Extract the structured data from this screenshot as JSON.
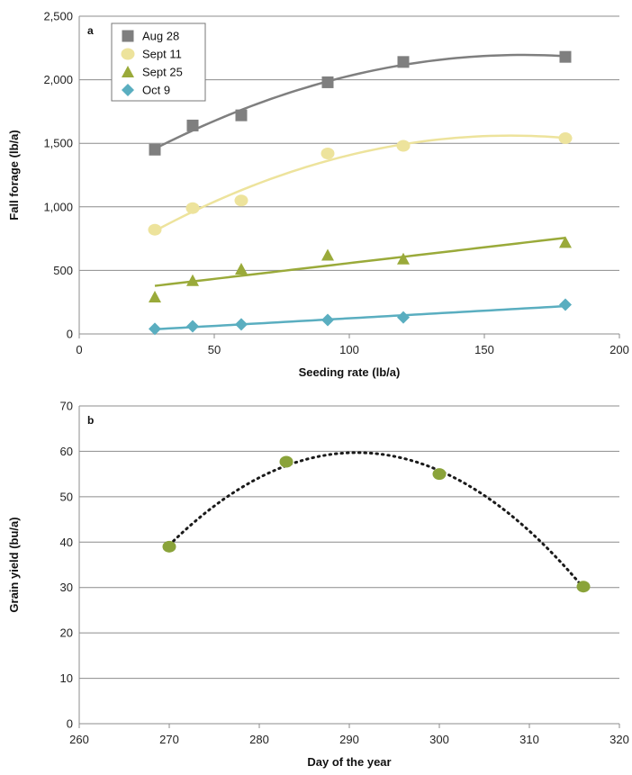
{
  "chart_data": [
    {
      "type": "scatter",
      "panel_label": "a",
      "xlabel": "Seeding rate (lb/a)",
      "ylabel": "Fall forage (lb/a)",
      "xlim": [
        0,
        200
      ],
      "ylim": [
        0,
        2500
      ],
      "xticks": [
        0,
        50,
        100,
        150,
        200
      ],
      "yticks": [
        0,
        500,
        1000,
        1500,
        2000,
        2500
      ],
      "ytick_labels": [
        "0",
        "500",
        "1,000",
        "1,500",
        "2,000",
        "2,500"
      ],
      "grid": "horizontal",
      "legend_position": "top-left",
      "trendlines": true,
      "series": [
        {
          "name": "Aug 28",
          "marker": "square",
          "color": "#7f7f7f",
          "trend": "quadratic",
          "x": [
            28,
            42,
            60,
            92,
            120,
            180
          ],
          "y": [
            1450,
            1640,
            1720,
            1980,
            2140,
            2180
          ]
        },
        {
          "name": "Sept 11",
          "marker": "circle",
          "color": "#ede39c",
          "trend": "quadratic",
          "x": [
            28,
            42,
            60,
            92,
            120,
            180
          ],
          "y": [
            820,
            990,
            1050,
            1420,
            1480,
            1540
          ]
        },
        {
          "name": "Sept 25",
          "marker": "triangle",
          "color": "#9aaa3a",
          "trend": "linear",
          "x": [
            28,
            42,
            60,
            92,
            120,
            180
          ],
          "y": [
            290,
            420,
            510,
            620,
            590,
            720
          ]
        },
        {
          "name": "Oct 9",
          "marker": "diamond",
          "color": "#5aaec0",
          "trend": "linear",
          "x": [
            28,
            42,
            60,
            92,
            120,
            180
          ],
          "y": [
            40,
            60,
            75,
            110,
            130,
            230
          ]
        }
      ]
    },
    {
      "type": "scatter",
      "panel_label": "b",
      "xlabel": "Day of the year",
      "ylabel": "Grain yield (bu/a)",
      "xlim": [
        260,
        320
      ],
      "ylim": [
        0,
        70
      ],
      "xticks": [
        260,
        270,
        280,
        290,
        300,
        310,
        320
      ],
      "yticks": [
        0,
        10,
        20,
        30,
        40,
        50,
        60,
        70
      ],
      "grid": "horizontal",
      "trendline": "quadratic, dotted",
      "series": [
        {
          "marker": "circle",
          "color": "#8aa33a",
          "x": [
            270,
            283,
            300,
            316
          ],
          "y": [
            39,
            57.7,
            55,
            30.2
          ]
        }
      ]
    }
  ]
}
